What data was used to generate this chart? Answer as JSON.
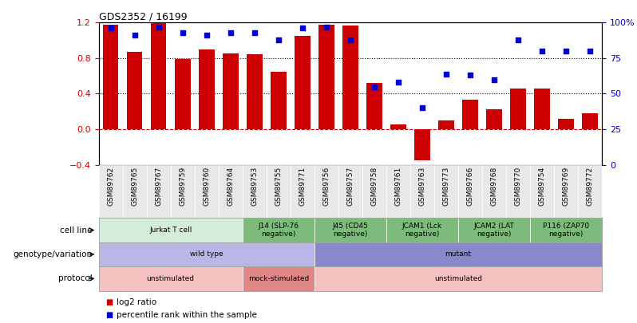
{
  "title": "GDS2352 / 16199",
  "samples": [
    "GSM89762",
    "GSM89765",
    "GSM89767",
    "GSM89759",
    "GSM89760",
    "GSM89764",
    "GSM89753",
    "GSM89755",
    "GSM89771",
    "GSM89756",
    "GSM89757",
    "GSM89758",
    "GSM89761",
    "GSM89763",
    "GSM89773",
    "GSM89766",
    "GSM89768",
    "GSM89770",
    "GSM89754",
    "GSM89769",
    "GSM89772"
  ],
  "log2_ratio": [
    1.18,
    0.87,
    1.2,
    0.79,
    0.9,
    0.85,
    0.84,
    0.65,
    1.05,
    1.18,
    1.17,
    0.52,
    0.05,
    -0.35,
    0.1,
    0.33,
    0.22,
    0.46,
    0.46,
    0.12,
    0.18
  ],
  "percentile_rank": [
    96,
    91,
    97,
    93,
    91,
    93,
    93,
    88,
    96,
    97,
    88,
    55,
    58,
    40,
    64,
    63,
    60,
    88,
    80,
    80,
    80
  ],
  "bar_color": "#cc0000",
  "dot_color": "#0000cc",
  "ylim_left": [
    -0.4,
    1.2
  ],
  "ylim_right": [
    0,
    100
  ],
  "yticks_left": [
    -0.4,
    0.0,
    0.4,
    0.8,
    1.2
  ],
  "yticks_right_vals": [
    0,
    25,
    50,
    75,
    100
  ],
  "yticks_right_labels": [
    "0",
    "25",
    "50",
    "75",
    "100%"
  ],
  "hlines": [
    0.4,
    0.8
  ],
  "cell_line_groups": [
    {
      "label": "Jurkat T cell",
      "start": 0,
      "end": 6,
      "color": "#d4edda"
    },
    {
      "label": "J14 (SLP-76\nnegative)",
      "start": 6,
      "end": 9,
      "color": "#7dbb7d"
    },
    {
      "label": "J45 (CD45\nnegative)",
      "start": 9,
      "end": 12,
      "color": "#7dbb7d"
    },
    {
      "label": "JCAM1 (Lck\nnegative)",
      "start": 12,
      "end": 15,
      "color": "#7dbb7d"
    },
    {
      "label": "JCAM2 (LAT\nnegative)",
      "start": 15,
      "end": 18,
      "color": "#7dbb7d"
    },
    {
      "label": "P116 (ZAP70\nnegative)",
      "start": 18,
      "end": 21,
      "color": "#7dbb7d"
    }
  ],
  "genotype_groups": [
    {
      "label": "wild type",
      "start": 0,
      "end": 9,
      "color": "#b8b8e8"
    },
    {
      "label": "mutant",
      "start": 9,
      "end": 21,
      "color": "#8888cc"
    }
  ],
  "protocol_groups": [
    {
      "label": "unstimulated",
      "start": 0,
      "end": 6,
      "color": "#f5c0c0"
    },
    {
      "label": "mock-stimulated",
      "start": 6,
      "end": 9,
      "color": "#e08888"
    },
    {
      "label": "unstimulated",
      "start": 9,
      "end": 21,
      "color": "#f5c0c0"
    }
  ],
  "row_labels": [
    "cell line",
    "genotype/variation",
    "protocol"
  ],
  "legend_items": [
    {
      "color": "#cc0000",
      "label": "log2 ratio"
    },
    {
      "color": "#0000cc",
      "label": "percentile rank within the sample"
    }
  ]
}
